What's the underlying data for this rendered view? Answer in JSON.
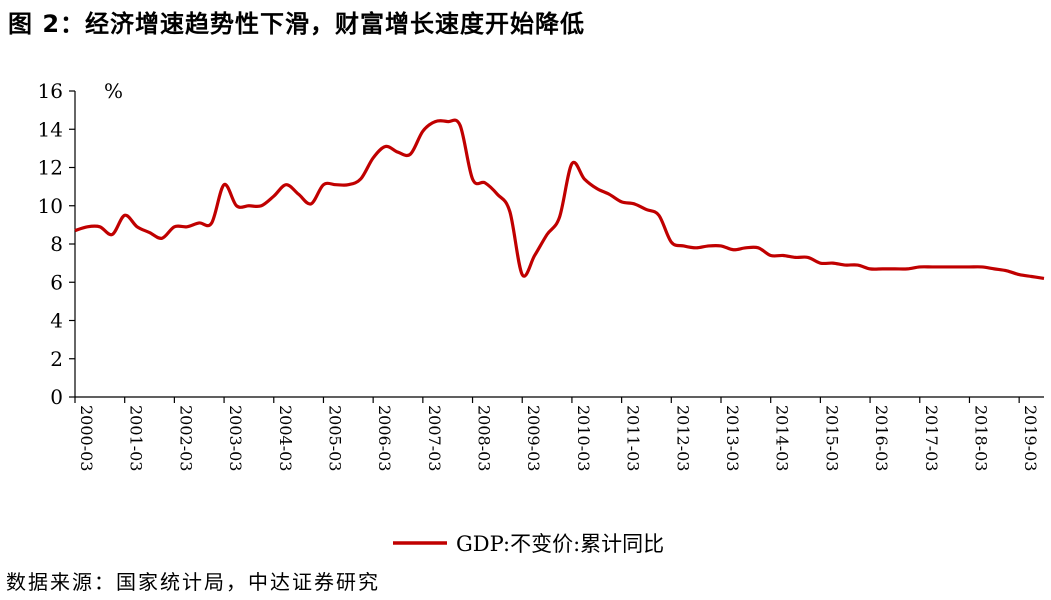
{
  "title": "图 2：经济增速趋势性下滑，财富增长速度开始降低",
  "source": "数据来源：国家统计局，中达证券研究",
  "chart_data": {
    "type": "line",
    "unit_label": "%",
    "ylim": [
      0,
      16
    ],
    "yticks": [
      0,
      2,
      4,
      6,
      8,
      10,
      12,
      14,
      16
    ],
    "xticks": [
      "2000-03",
      "2001-03",
      "2002-03",
      "2003-03",
      "2004-03",
      "2005-03",
      "2006-03",
      "2007-03",
      "2008-03",
      "2009-03",
      "2010-03",
      "2011-03",
      "2012-03",
      "2013-03",
      "2014-03",
      "2015-03",
      "2016-03",
      "2017-03",
      "2018-03",
      "2019-03"
    ],
    "x_start": "2000-03",
    "x_end": "2019-09",
    "grid": false,
    "legend_position": "bottom-center",
    "line_color": "#c00000",
    "series": [
      {
        "name": "GDP:不变价:累计同比",
        "x": [
          "2000-03",
          "2000-06",
          "2000-09",
          "2000-12",
          "2001-03",
          "2001-06",
          "2001-09",
          "2001-12",
          "2002-03",
          "2002-06",
          "2002-09",
          "2002-12",
          "2003-03",
          "2003-06",
          "2003-09",
          "2003-12",
          "2004-03",
          "2004-06",
          "2004-09",
          "2004-12",
          "2005-03",
          "2005-06",
          "2005-09",
          "2005-12",
          "2006-03",
          "2006-06",
          "2006-09",
          "2006-12",
          "2007-03",
          "2007-06",
          "2007-09",
          "2007-12",
          "2008-03",
          "2008-06",
          "2008-09",
          "2008-12",
          "2009-03",
          "2009-06",
          "2009-09",
          "2009-12",
          "2010-03",
          "2010-06",
          "2010-09",
          "2010-12",
          "2011-03",
          "2011-06",
          "2011-09",
          "2011-12",
          "2012-03",
          "2012-06",
          "2012-09",
          "2012-12",
          "2013-03",
          "2013-06",
          "2013-09",
          "2013-12",
          "2014-03",
          "2014-06",
          "2014-09",
          "2014-12",
          "2015-03",
          "2015-06",
          "2015-09",
          "2015-12",
          "2016-03",
          "2016-06",
          "2016-09",
          "2016-12",
          "2017-03",
          "2017-06",
          "2017-09",
          "2017-12",
          "2018-03",
          "2018-06",
          "2018-09",
          "2018-12",
          "2019-03",
          "2019-06",
          "2019-09"
        ],
        "values": [
          8.7,
          8.9,
          8.9,
          8.5,
          9.5,
          8.9,
          8.6,
          8.3,
          8.9,
          8.9,
          9.1,
          9.1,
          11.1,
          10.0,
          10.0,
          10.0,
          10.5,
          11.1,
          10.6,
          10.1,
          11.1,
          11.1,
          11.1,
          11.4,
          12.5,
          13.1,
          12.8,
          12.7,
          13.9,
          14.4,
          14.4,
          14.2,
          11.4,
          11.2,
          10.6,
          9.7,
          6.4,
          7.4,
          8.5,
          9.4,
          12.2,
          11.4,
          10.9,
          10.6,
          10.2,
          10.1,
          9.8,
          9.5,
          8.1,
          7.9,
          7.8,
          7.9,
          7.9,
          7.7,
          7.8,
          7.8,
          7.4,
          7.4,
          7.3,
          7.3,
          7.0,
          7.0,
          6.9,
          6.9,
          6.7,
          6.7,
          6.7,
          6.7,
          6.8,
          6.8,
          6.8,
          6.8,
          6.8,
          6.8,
          6.7,
          6.6,
          6.4,
          6.3,
          6.2
        ]
      }
    ]
  }
}
